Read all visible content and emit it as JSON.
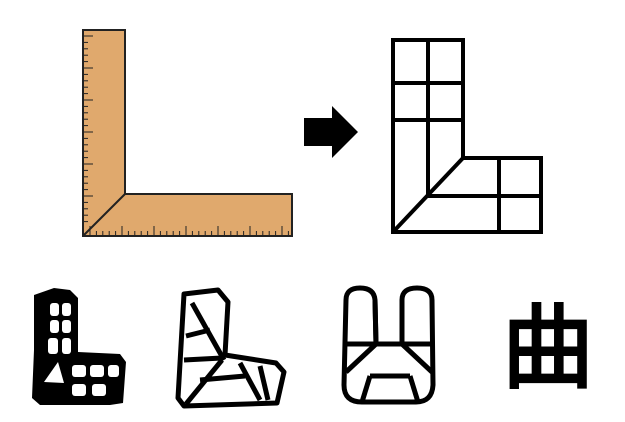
{
  "diagram": {
    "title": "",
    "colors": {
      "ruler_fill": "#e0a96d",
      "ruler_stroke": "#222222",
      "glyph_ink": "#000000",
      "arrow_fill": "#000000",
      "background": "#ffffff"
    },
    "panels": [
      {
        "name": "carpenter-square-ruler-illustration",
        "icon": "l-square-ruler-icon"
      },
      {
        "name": "arrow",
        "icon": "right-arrow-icon"
      },
      {
        "name": "l-shaped-grid-schematic",
        "icon": "l-grid-icon"
      }
    ],
    "glyph_row": [
      {
        "name": "ancient-glyph-grid-l",
        "icon": "archaic-grid-l-glyph-icon"
      },
      {
        "name": "ancient-glyph-triangle-l",
        "icon": "archaic-triangle-l-glyph-icon"
      },
      {
        "name": "ancient-glyph-u-shape",
        "icon": "archaic-u-shape-glyph-icon"
      },
      {
        "name": "modern-character-qu",
        "text": "曲"
      }
    ]
  }
}
